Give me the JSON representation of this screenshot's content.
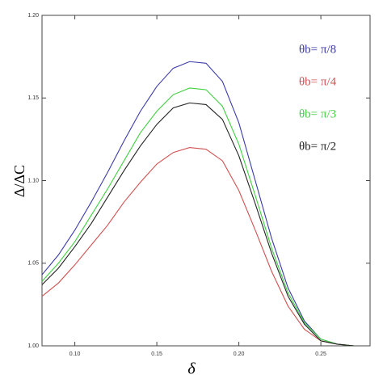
{
  "chart_data": {
    "type": "line",
    "x_label": "δ",
    "y_label": "Δ/ΔC",
    "x": [
      0.08,
      0.09,
      0.1,
      0.11,
      0.12,
      0.13,
      0.14,
      0.15,
      0.16,
      0.17,
      0.18,
      0.19,
      0.2,
      0.21,
      0.22,
      0.23,
      0.24,
      0.25,
      0.26,
      0.27
    ],
    "series": [
      {
        "name": "θb= π/8",
        "color": "#3a3aa8",
        "values": [
          1.043,
          1.055,
          1.07,
          1.087,
          1.105,
          1.124,
          1.142,
          1.157,
          1.168,
          1.172,
          1.171,
          1.16,
          1.135,
          1.1,
          1.065,
          1.035,
          1.015,
          1.004,
          1.001,
          1.0
        ]
      },
      {
        "name": "θb= π/4",
        "color": "#d05050",
        "values": [
          1.03,
          1.038,
          1.049,
          1.061,
          1.073,
          1.087,
          1.099,
          1.11,
          1.117,
          1.12,
          1.119,
          1.112,
          1.094,
          1.07,
          1.045,
          1.024,
          1.01,
          1.003,
          1.001,
          1.0
        ]
      },
      {
        "name": "θb= π/3",
        "color": "#40d040",
        "values": [
          1.039,
          1.05,
          1.063,
          1.079,
          1.095,
          1.112,
          1.129,
          1.142,
          1.152,
          1.156,
          1.155,
          1.145,
          1.122,
          1.091,
          1.059,
          1.032,
          1.014,
          1.004,
          1.001,
          1.0
        ]
      },
      {
        "name": "θb= π/2",
        "color": "#222222",
        "values": [
          1.037,
          1.047,
          1.06,
          1.074,
          1.09,
          1.106,
          1.121,
          1.134,
          1.144,
          1.147,
          1.146,
          1.137,
          1.115,
          1.086,
          1.056,
          1.03,
          1.013,
          1.003,
          1.001,
          1.0
        ]
      }
    ],
    "xlim": [
      0.08,
      0.28
    ],
    "xticks": [
      {
        "value": 0.1,
        "label": "0.10"
      },
      {
        "value": 0.15,
        "label": "0.15"
      },
      {
        "value": 0.2,
        "label": "0.20"
      },
      {
        "value": 0.25,
        "label": "0.25"
      }
    ],
    "ylim": [
      1.0,
      1.2
    ],
    "yticks": [
      {
        "value": 1.0,
        "label": "1.00"
      },
      {
        "value": 1.05,
        "label": "1.05"
      },
      {
        "value": 1.1,
        "label": "1.10"
      },
      {
        "value": 1.15,
        "label": "1.15"
      },
      {
        "value": 1.2,
        "label": "1.20"
      }
    ],
    "grid": false,
    "legend": "upper right"
  }
}
